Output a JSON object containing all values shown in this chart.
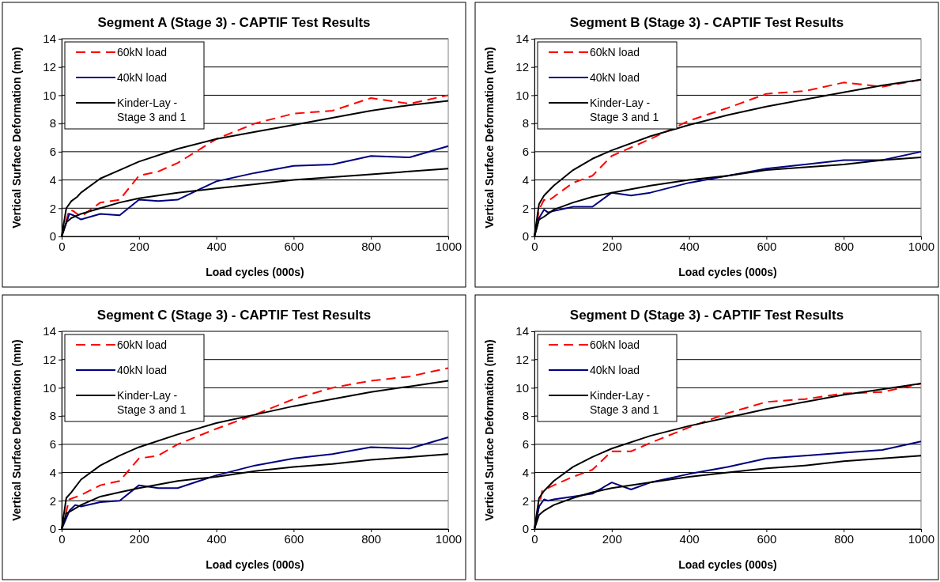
{
  "chart_data": [
    {
      "type": "line",
      "title": "Segment A (Stage 3) - CAPTIF Test Results",
      "xlabel": "Load cycles (000s)",
      "ylabel": "Vertical Surface Deformation (mm)",
      "xlim": [
        0,
        1000
      ],
      "ylim": [
        0,
        14
      ],
      "xticks": [
        0,
        200,
        400,
        600,
        800,
        1000
      ],
      "yticks": [
        0,
        2,
        4,
        6,
        8,
        10,
        12,
        14
      ],
      "grid": "y",
      "legend": "top left",
      "marker": "none",
      "series": [
        {
          "name": "60kN load",
          "color": "#ff0000",
          "line_style": "dashed",
          "x": [
            0,
            20,
            30,
            50,
            100,
            150,
            200,
            250,
            300,
            400,
            500,
            600,
            700,
            800,
            900,
            1000
          ],
          "values": [
            0,
            1.9,
            1.8,
            1.4,
            2.4,
            2.6,
            4.3,
            4.6,
            5.2,
            6.9,
            8.0,
            8.7,
            8.9,
            9.8,
            9.4,
            10.0
          ]
        },
        {
          "name": "40kN load",
          "color": "#000080",
          "line_style": "solid",
          "x": [
            0,
            20,
            30,
            50,
            100,
            150,
            200,
            250,
            300,
            400,
            500,
            600,
            700,
            800,
            900,
            1000
          ],
          "values": [
            0,
            1.6,
            1.5,
            1.2,
            1.6,
            1.5,
            2.6,
            2.5,
            2.6,
            3.9,
            4.5,
            5.0,
            5.1,
            5.7,
            5.6,
            6.4
          ]
        },
        {
          "name": "Kinder-Lay - Stage 3 and 1",
          "color": "#000000",
          "line_style": "solid",
          "x": [
            0,
            12,
            25,
            40,
            50,
            100,
            150,
            200,
            300,
            400,
            500,
            600,
            700,
            800,
            900,
            1000
          ],
          "values": [
            0,
            2.0,
            2.5,
            2.8,
            3.1,
            4.1,
            4.7,
            5.3,
            6.2,
            6.9,
            7.4,
            7.9,
            8.4,
            8.9,
            9.3,
            9.6
          ]
        },
        {
          "color": "#000000",
          "line_style": "solid",
          "x": [
            0,
            12,
            25,
            50,
            100,
            150,
            200,
            300,
            400,
            500,
            600,
            700,
            800,
            900,
            1000
          ],
          "values": [
            0,
            1.0,
            1.3,
            1.6,
            2.0,
            2.4,
            2.7,
            3.1,
            3.4,
            3.7,
            4.0,
            4.2,
            4.4,
            4.6,
            4.8
          ]
        }
      ]
    },
    {
      "type": "line",
      "title": "Segment B (Stage 3) - CAPTIF Test Results",
      "xlabel": "Load cycles (000s)",
      "ylabel": "Vertical Surface Deformation (mm)",
      "xlim": [
        0,
        1000
      ],
      "ylim": [
        0,
        14
      ],
      "xticks": [
        0,
        200,
        400,
        600,
        800,
        1000
      ],
      "yticks": [
        0,
        2,
        4,
        6,
        8,
        10,
        12,
        14
      ],
      "grid": "y",
      "legend": "top left",
      "marker": "none",
      "series": [
        {
          "name": "60kN load",
          "color": "#ff0000",
          "line_style": "dashed",
          "x": [
            0,
            12,
            25,
            35,
            50,
            100,
            150,
            200,
            250,
            300,
            400,
            500,
            600,
            700,
            800,
            900,
            1000
          ],
          "values": [
            0,
            1.9,
            2.6,
            2.5,
            2.8,
            3.8,
            4.3,
            5.7,
            6.3,
            6.9,
            8.2,
            9.1,
            10.1,
            10.3,
            10.9,
            10.6,
            11.1
          ]
        },
        {
          "name": "40kN load",
          "color": "#000080",
          "line_style": "solid",
          "x": [
            0,
            12,
            25,
            35,
            50,
            100,
            150,
            200,
            250,
            300,
            400,
            500,
            600,
            700,
            800,
            900,
            1000
          ],
          "values": [
            0,
            1.3,
            1.9,
            1.7,
            1.8,
            2.1,
            2.1,
            3.1,
            2.9,
            3.1,
            3.8,
            4.3,
            4.8,
            5.1,
            5.4,
            5.4,
            6.0
          ]
        },
        {
          "name": "Kinder-Lay - Stage 3 and 1",
          "color": "#000000",
          "line_style": "solid",
          "x": [
            0,
            12,
            25,
            50,
            100,
            150,
            200,
            300,
            400,
            500,
            600,
            700,
            800,
            900,
            1000
          ],
          "values": [
            0,
            2.3,
            2.9,
            3.6,
            4.7,
            5.5,
            6.1,
            7.1,
            7.9,
            8.6,
            9.2,
            9.7,
            10.2,
            10.7,
            11.1
          ]
        },
        {
          "color": "#000000",
          "line_style": "solid",
          "x": [
            0,
            12,
            25,
            50,
            100,
            150,
            200,
            300,
            400,
            500,
            600,
            700,
            800,
            900,
            1000
          ],
          "values": [
            0,
            1.2,
            1.4,
            1.9,
            2.4,
            2.8,
            3.1,
            3.6,
            4.0,
            4.3,
            4.7,
            4.9,
            5.1,
            5.4,
            5.6
          ]
        }
      ]
    },
    {
      "type": "line",
      "title": "Segment C (Stage 3) - CAPTIF Test Results",
      "xlabel": "Load cycles (000s)",
      "ylabel": "Vertical Surface Deformation (mm)",
      "xlim": [
        0,
        1000
      ],
      "ylim": [
        0,
        14
      ],
      "xticks": [
        0,
        200,
        400,
        600,
        800,
        1000
      ],
      "yticks": [
        0,
        2,
        4,
        6,
        8,
        10,
        12,
        14
      ],
      "grid": "y",
      "legend": "top left",
      "marker": "none",
      "series": [
        {
          "name": "60kN load",
          "color": "#ff0000",
          "line_style": "dashed",
          "x": [
            0,
            20,
            50,
            100,
            150,
            200,
            250,
            300,
            400,
            500,
            600,
            700,
            800,
            900,
            1000
          ],
          "values": [
            0,
            2.1,
            2.4,
            3.1,
            3.4,
            5.0,
            5.2,
            6.0,
            7.1,
            8.1,
            9.2,
            10.0,
            10.5,
            10.8,
            11.4
          ]
        },
        {
          "name": "40kN load",
          "color": "#000080",
          "line_style": "solid",
          "x": [
            0,
            20,
            35,
            50,
            100,
            150,
            200,
            250,
            300,
            400,
            500,
            600,
            700,
            800,
            900,
            1000
          ],
          "values": [
            0,
            1.3,
            1.7,
            1.6,
            1.9,
            2.0,
            3.1,
            2.9,
            2.9,
            3.8,
            4.5,
            5.0,
            5.3,
            5.8,
            5.7,
            6.5
          ]
        },
        {
          "name": "Kinder-Lay - Stage 3 and 1",
          "color": "#000000",
          "line_style": "solid",
          "x": [
            0,
            12,
            25,
            50,
            100,
            150,
            200,
            300,
            400,
            500,
            600,
            700,
            800,
            900,
            1000
          ],
          "values": [
            0,
            2.2,
            2.6,
            3.5,
            4.5,
            5.2,
            5.8,
            6.7,
            7.5,
            8.1,
            8.7,
            9.2,
            9.7,
            10.1,
            10.5
          ]
        },
        {
          "color": "#000000",
          "line_style": "solid",
          "x": [
            0,
            12,
            25,
            50,
            100,
            150,
            200,
            300,
            400,
            500,
            600,
            700,
            800,
            900,
            1000
          ],
          "values": [
            0,
            1.1,
            1.3,
            1.7,
            2.3,
            2.6,
            2.9,
            3.4,
            3.7,
            4.1,
            4.4,
            4.6,
            4.9,
            5.1,
            5.3
          ]
        }
      ]
    },
    {
      "type": "line",
      "title": "Segment D (Stage 3) - CAPTIF Test Results",
      "xlabel": "Load cycles (000s)",
      "ylabel": "Vertical Surface Deformation (mm)",
      "xlim": [
        0,
        1000
      ],
      "ylim": [
        0,
        14
      ],
      "xticks": [
        0,
        200,
        400,
        600,
        800,
        1000
      ],
      "yticks": [
        0,
        2,
        4,
        6,
        8,
        10,
        12,
        14
      ],
      "grid": "y",
      "legend": "top left",
      "marker": "none",
      "series": [
        {
          "name": "60kN load",
          "color": "#ff0000",
          "line_style": "dashed",
          "x": [
            0,
            20,
            50,
            100,
            150,
            200,
            250,
            300,
            400,
            500,
            600,
            700,
            800,
            900,
            1000
          ],
          "values": [
            0,
            2.7,
            3.1,
            3.7,
            4.2,
            5.5,
            5.5,
            6.1,
            7.2,
            8.2,
            9.0,
            9.2,
            9.6,
            9.7,
            10.3
          ]
        },
        {
          "name": "40kN load",
          "color": "#000080",
          "line_style": "solid",
          "x": [
            0,
            12,
            25,
            35,
            50,
            100,
            150,
            200,
            250,
            300,
            400,
            500,
            600,
            700,
            800,
            900,
            1000
          ],
          "values": [
            0,
            1.6,
            2.1,
            2.0,
            2.1,
            2.3,
            2.5,
            3.3,
            2.8,
            3.3,
            3.9,
            4.4,
            5.0,
            5.2,
            5.4,
            5.6,
            6.2
          ]
        },
        {
          "name": "Kinder-Lay - Stage 3 and 1",
          "color": "#000000",
          "line_style": "solid",
          "x": [
            0,
            12,
            25,
            50,
            100,
            150,
            200,
            300,
            400,
            500,
            600,
            700,
            800,
            900,
            1000
          ],
          "values": [
            0,
            2.2,
            2.7,
            3.4,
            4.4,
            5.1,
            5.7,
            6.6,
            7.3,
            7.9,
            8.5,
            9.0,
            9.5,
            9.9,
            10.3
          ]
        },
        {
          "color": "#000000",
          "line_style": "solid",
          "x": [
            0,
            12,
            25,
            50,
            100,
            150,
            200,
            300,
            400,
            500,
            600,
            700,
            800,
            900,
            1000
          ],
          "values": [
            0,
            1.0,
            1.3,
            1.7,
            2.2,
            2.6,
            2.9,
            3.3,
            3.7,
            4.0,
            4.3,
            4.5,
            4.8,
            5.0,
            5.2
          ]
        }
      ]
    }
  ]
}
